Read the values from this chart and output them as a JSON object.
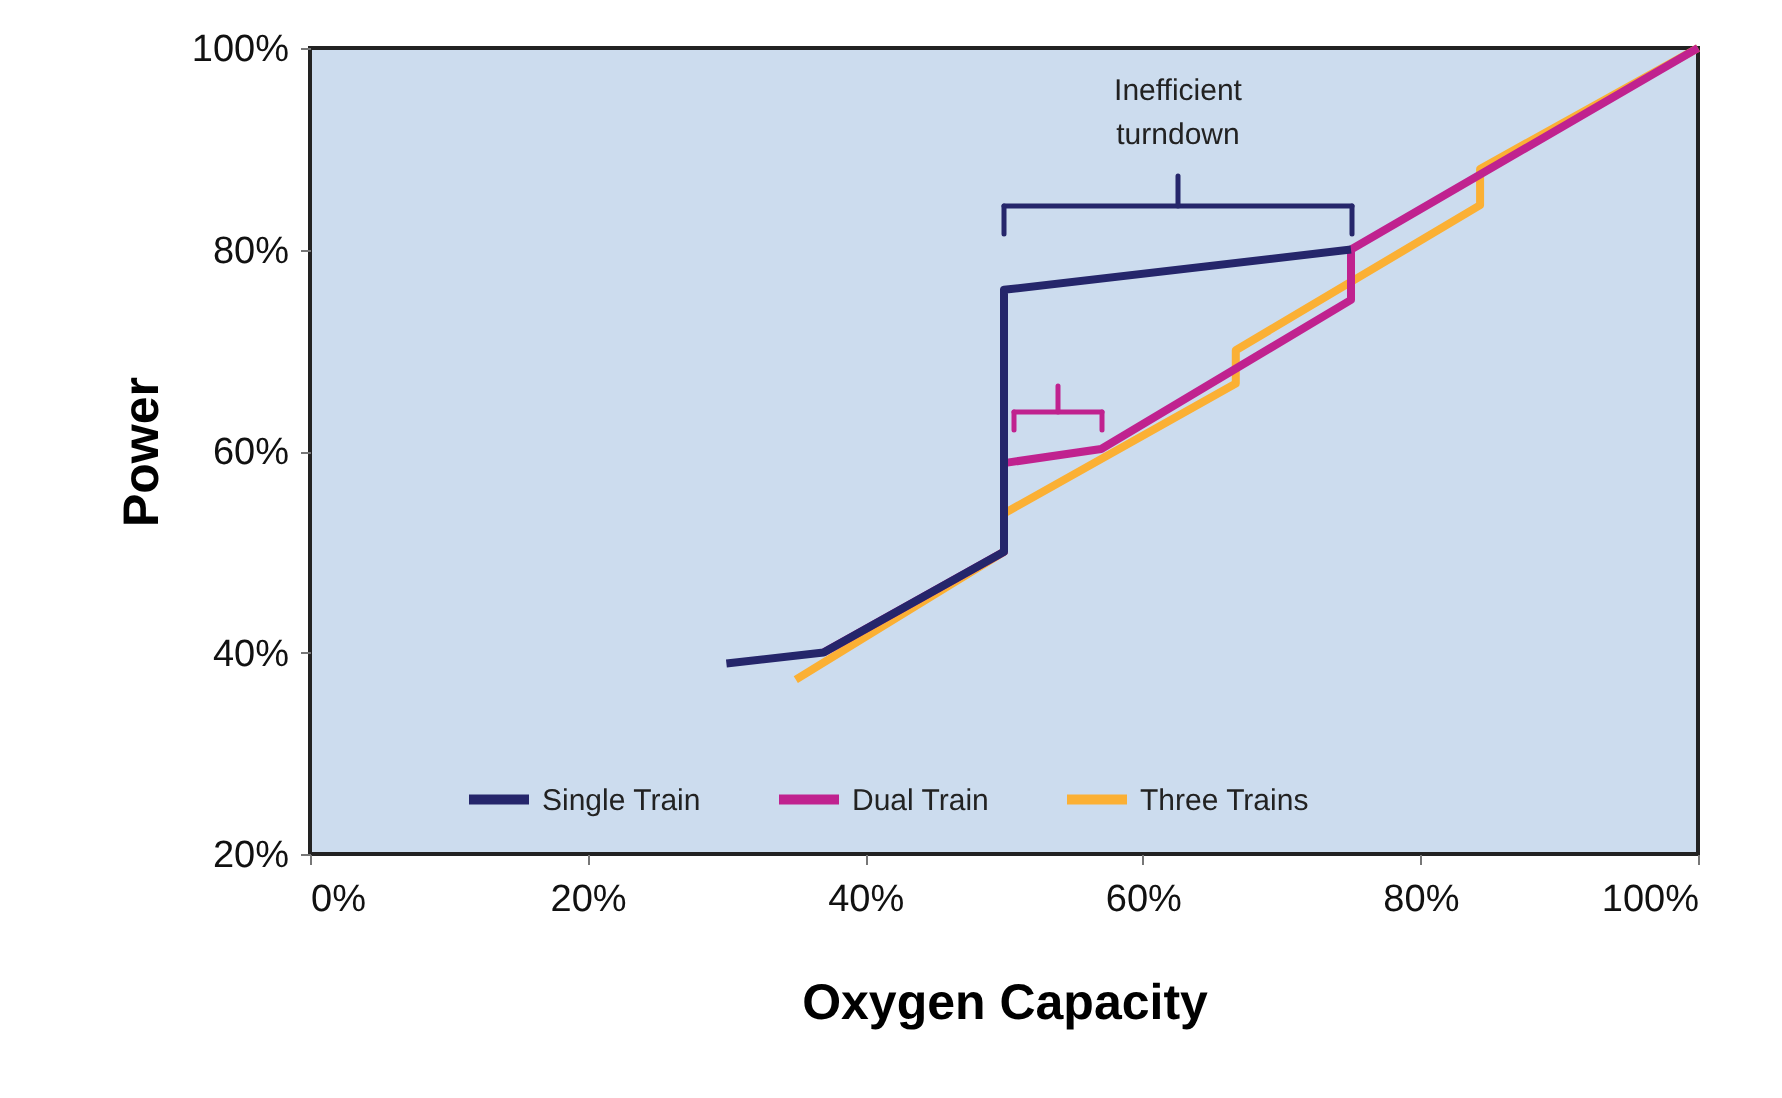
{
  "chart_data": {
    "type": "line",
    "xlabel": "Oxygen Capacity",
    "ylabel": "Power",
    "annotations": [
      "Inefficient turndown"
    ],
    "series": [
      {
        "name": "Single Train",
        "color": "#25266b",
        "x": [
          30,
          37,
          50,
          50,
          75
        ],
        "values": [
          38.9,
          40,
          50,
          76,
          80
        ]
      },
      {
        "name": "Dual Train",
        "color": "#c0228f",
        "x": [
          37,
          50,
          50,
          57,
          75,
          75,
          100
        ],
        "values": [
          40,
          50,
          58.8,
          60.2,
          75,
          80,
          100
        ]
      },
      {
        "name": "Three Trains",
        "color": "#fbb034",
        "x": [
          35,
          50,
          50,
          66.7,
          66.7,
          84.3,
          84.3,
          100
        ],
        "values": [
          37.3,
          50,
          53.8,
          66.7,
          70,
          84.4,
          88,
          100
        ]
      }
    ],
    "xlim": [
      0,
      100
    ],
    "ylim": [
      20,
      100
    ],
    "xticks": [
      {
        "value": 0,
        "label": "0%"
      },
      {
        "value": 20,
        "label": "20%"
      },
      {
        "value": 40,
        "label": "40%"
      },
      {
        "value": 60,
        "label": "60%"
      },
      {
        "value": 80,
        "label": "80%"
      },
      {
        "value": 100,
        "label": "100%"
      }
    ],
    "yticks": [
      {
        "value": 20,
        "label": "20%"
      },
      {
        "value": 40,
        "label": "40%"
      },
      {
        "value": 60,
        "label": "60%"
      },
      {
        "value": 80,
        "label": "80%"
      },
      {
        "value": 100,
        "label": "100%"
      }
    ],
    "grid": false,
    "legend": "bottom",
    "marker": "none",
    "line_style": "solid"
  }
}
